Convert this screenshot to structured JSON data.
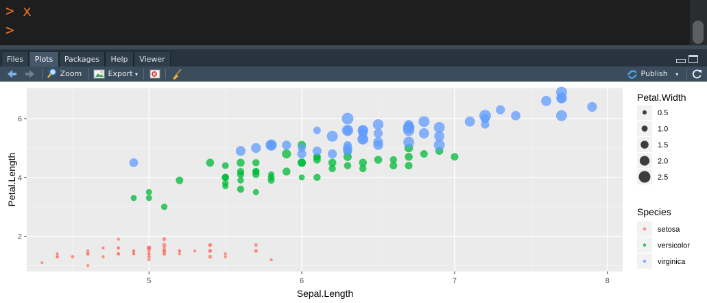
{
  "console": {
    "line1": "> x",
    "line2": ">"
  },
  "tabs": [
    {
      "label": "Files"
    },
    {
      "label": "Plots",
      "active": true
    },
    {
      "label": "Packages"
    },
    {
      "label": "Help"
    },
    {
      "label": "Viewer"
    }
  ],
  "toolbar": {
    "zoom_label": "Zoom",
    "export_label": "Export",
    "publish_label": "Publish"
  },
  "icons": {
    "back": "arrow-left-icon",
    "forward": "arrow-right-icon",
    "zoom": "magnifier-icon",
    "export": "image-icon",
    "remove": "remove-plot-icon",
    "clear": "broom-icon",
    "publish": "publish-icon",
    "refresh": "refresh-icon"
  },
  "colors": {
    "setosa": "#F8766D",
    "versicolor": "#00BA38",
    "virginica": "#619CFF",
    "panel": "#EBEBEB"
  },
  "chart_data": {
    "type": "scatter",
    "title": "",
    "xlabel": "Sepal.Length",
    "ylabel": "Petal.Length",
    "xlim": [
      4.2,
      8.1
    ],
    "ylim": [
      0.8,
      7.05
    ],
    "xticks": [
      5,
      6,
      7,
      8
    ],
    "yticks": [
      2,
      4,
      6
    ],
    "grid": true,
    "legend_position": "right",
    "size_legend": {
      "title": "Petal.Width",
      "values": [
        0.5,
        1.0,
        1.5,
        2.0,
        2.5
      ],
      "labels": [
        "0.5",
        "1.0",
        "1.5",
        "2.0",
        "2.5"
      ]
    },
    "color_legend": {
      "title": "Species",
      "labels": [
        "setosa",
        "versicolor",
        "virginica"
      ]
    },
    "series": [
      {
        "name": "setosa",
        "points": [
          [
            5.1,
            1.4,
            0.2
          ],
          [
            4.9,
            1.4,
            0.2
          ],
          [
            4.7,
            1.3,
            0.2
          ],
          [
            4.6,
            1.5,
            0.2
          ],
          [
            5.0,
            1.4,
            0.2
          ],
          [
            5.4,
            1.7,
            0.4
          ],
          [
            4.6,
            1.4,
            0.3
          ],
          [
            5.0,
            1.5,
            0.2
          ],
          [
            4.4,
            1.4,
            0.2
          ],
          [
            4.9,
            1.5,
            0.1
          ],
          [
            5.4,
            1.5,
            0.2
          ],
          [
            4.8,
            1.6,
            0.2
          ],
          [
            4.8,
            1.4,
            0.1
          ],
          [
            4.3,
            1.1,
            0.1
          ],
          [
            5.8,
            1.2,
            0.2
          ],
          [
            5.7,
            1.5,
            0.4
          ],
          [
            5.4,
            1.3,
            0.4
          ],
          [
            5.1,
            1.4,
            0.3
          ],
          [
            5.7,
            1.7,
            0.3
          ],
          [
            5.1,
            1.5,
            0.3
          ],
          [
            5.4,
            1.7,
            0.2
          ],
          [
            5.1,
            1.5,
            0.4
          ],
          [
            4.6,
            1.0,
            0.2
          ],
          [
            5.1,
            1.7,
            0.5
          ],
          [
            4.8,
            1.9,
            0.2
          ],
          [
            5.0,
            1.6,
            0.2
          ],
          [
            5.0,
            1.6,
            0.4
          ],
          [
            5.2,
            1.5,
            0.2
          ],
          [
            5.2,
            1.4,
            0.2
          ],
          [
            4.7,
            1.6,
            0.2
          ],
          [
            4.8,
            1.6,
            0.2
          ],
          [
            5.4,
            1.5,
            0.4
          ],
          [
            5.2,
            1.5,
            0.1
          ],
          [
            5.5,
            1.4,
            0.2
          ],
          [
            4.9,
            1.5,
            0.2
          ],
          [
            5.0,
            1.2,
            0.2
          ],
          [
            5.5,
            1.3,
            0.2
          ],
          [
            4.9,
            1.4,
            0.1
          ],
          [
            4.4,
            1.3,
            0.2
          ],
          [
            5.1,
            1.5,
            0.2
          ],
          [
            5.0,
            1.3,
            0.3
          ],
          [
            4.5,
            1.3,
            0.3
          ],
          [
            4.4,
            1.3,
            0.2
          ],
          [
            5.0,
            1.6,
            0.6
          ],
          [
            5.1,
            1.9,
            0.4
          ],
          [
            4.8,
            1.4,
            0.3
          ],
          [
            5.1,
            1.6,
            0.2
          ],
          [
            4.6,
            1.4,
            0.2
          ],
          [
            5.3,
            1.5,
            0.2
          ],
          [
            5.0,
            1.4,
            0.2
          ]
        ]
      },
      {
        "name": "versicolor",
        "points": [
          [
            7.0,
            4.7,
            1.4
          ],
          [
            6.4,
            4.5,
            1.5
          ],
          [
            6.9,
            4.9,
            1.5
          ],
          [
            5.5,
            4.0,
            1.3
          ],
          [
            6.5,
            4.6,
            1.5
          ],
          [
            5.7,
            4.5,
            1.3
          ],
          [
            6.3,
            4.7,
            1.6
          ],
          [
            4.9,
            3.3,
            1.0
          ],
          [
            6.6,
            4.6,
            1.3
          ],
          [
            5.2,
            3.9,
            1.4
          ],
          [
            5.0,
            3.5,
            1.0
          ],
          [
            5.9,
            4.2,
            1.5
          ],
          [
            6.0,
            4.0,
            1.0
          ],
          [
            6.1,
            4.7,
            1.4
          ],
          [
            5.6,
            3.6,
            1.3
          ],
          [
            6.7,
            4.4,
            1.4
          ],
          [
            5.6,
            4.5,
            1.5
          ],
          [
            5.8,
            4.1,
            1.0
          ],
          [
            6.2,
            4.5,
            1.5
          ],
          [
            5.6,
            3.9,
            1.1
          ],
          [
            5.9,
            4.8,
            1.8
          ],
          [
            6.1,
            4.0,
            1.3
          ],
          [
            6.3,
            4.9,
            1.5
          ],
          [
            6.1,
            4.7,
            1.2
          ],
          [
            6.4,
            4.3,
            1.3
          ],
          [
            6.6,
            4.4,
            1.4
          ],
          [
            6.8,
            4.8,
            1.4
          ],
          [
            6.7,
            5.0,
            1.7
          ],
          [
            6.0,
            4.5,
            1.5
          ],
          [
            5.7,
            3.5,
            1.0
          ],
          [
            5.5,
            3.8,
            1.1
          ],
          [
            5.5,
            3.7,
            1.0
          ],
          [
            5.8,
            3.9,
            1.2
          ],
          [
            6.0,
            5.1,
            1.6
          ],
          [
            5.4,
            4.5,
            1.5
          ],
          [
            6.0,
            4.5,
            1.6
          ],
          [
            6.7,
            4.7,
            1.5
          ],
          [
            6.3,
            4.4,
            1.3
          ],
          [
            5.6,
            4.1,
            1.3
          ],
          [
            5.5,
            4.0,
            1.3
          ],
          [
            5.5,
            4.4,
            1.2
          ],
          [
            6.1,
            4.6,
            1.4
          ],
          [
            5.8,
            4.0,
            1.2
          ],
          [
            5.0,
            3.3,
            1.0
          ],
          [
            5.6,
            4.2,
            1.3
          ],
          [
            5.7,
            4.2,
            1.2
          ],
          [
            5.7,
            4.2,
            1.3
          ],
          [
            6.2,
            4.3,
            1.3
          ],
          [
            5.1,
            3.0,
            1.1
          ],
          [
            5.7,
            4.1,
            1.3
          ]
        ]
      },
      {
        "name": "virginica",
        "points": [
          [
            6.3,
            6.0,
            2.5
          ],
          [
            5.8,
            5.1,
            1.9
          ],
          [
            7.1,
            5.9,
            2.1
          ],
          [
            6.3,
            5.6,
            1.8
          ],
          [
            6.5,
            5.8,
            2.2
          ],
          [
            7.6,
            6.6,
            2.1
          ],
          [
            4.9,
            4.5,
            1.7
          ],
          [
            7.3,
            6.3,
            1.8
          ],
          [
            6.7,
            5.8,
            1.8
          ],
          [
            7.2,
            6.1,
            2.5
          ],
          [
            6.5,
            5.1,
            2.0
          ],
          [
            6.4,
            5.3,
            1.9
          ],
          [
            6.8,
            5.5,
            2.1
          ],
          [
            5.7,
            5.0,
            2.0
          ],
          [
            5.8,
            5.1,
            2.4
          ],
          [
            6.4,
            5.3,
            2.3
          ],
          [
            6.5,
            5.5,
            1.8
          ],
          [
            7.7,
            6.7,
            2.2
          ],
          [
            7.7,
            6.9,
            2.3
          ],
          [
            6.0,
            5.0,
            1.5
          ],
          [
            6.9,
            5.7,
            2.3
          ],
          [
            5.6,
            4.9,
            2.0
          ],
          [
            7.7,
            6.7,
            2.0
          ],
          [
            6.3,
            4.9,
            1.8
          ],
          [
            6.7,
            5.7,
            2.1
          ],
          [
            7.2,
            6.0,
            1.8
          ],
          [
            6.2,
            4.8,
            1.8
          ],
          [
            6.1,
            4.9,
            1.8
          ],
          [
            6.4,
            5.6,
            2.1
          ],
          [
            7.2,
            5.8,
            1.6
          ],
          [
            7.4,
            6.1,
            1.9
          ],
          [
            7.9,
            6.4,
            2.0
          ],
          [
            6.4,
            5.6,
            2.2
          ],
          [
            6.3,
            5.1,
            1.5
          ],
          [
            6.1,
            5.6,
            1.4
          ],
          [
            7.7,
            6.1,
            2.3
          ],
          [
            6.3,
            5.6,
            2.4
          ],
          [
            6.4,
            5.5,
            1.8
          ],
          [
            6.0,
            4.8,
            1.8
          ],
          [
            6.9,
            5.4,
            2.1
          ],
          [
            6.7,
            5.6,
            2.4
          ],
          [
            6.9,
            5.1,
            2.3
          ],
          [
            5.8,
            5.1,
            1.9
          ],
          [
            6.8,
            5.9,
            2.3
          ],
          [
            6.7,
            5.7,
            2.5
          ],
          [
            6.7,
            5.2,
            2.3
          ],
          [
            6.3,
            5.0,
            1.9
          ],
          [
            6.5,
            5.2,
            2.0
          ],
          [
            6.2,
            5.4,
            2.3
          ],
          [
            5.9,
            5.1,
            1.8
          ]
        ]
      }
    ]
  }
}
